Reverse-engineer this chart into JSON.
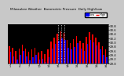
{
  "title": "Milwaukee Weather  Barometric Pressure  Daily High/Low",
  "background_color": "#c8c8c8",
  "plot_bg_color": "#000000",
  "high_color": "#ff0000",
  "low_color": "#0000ff",
  "legend_high": "High",
  "legend_low": "Low",
  "ylim_min": 29.0,
  "ylim_max": 30.85,
  "ytick_labels": [
    "29.0",
    "29.2",
    "29.4",
    "29.6",
    "29.8",
    "30.0",
    "30.2",
    "30.4",
    "30.6",
    "30.8"
  ],
  "ytick_vals": [
    29.0,
    29.2,
    29.4,
    29.6,
    29.8,
    30.0,
    30.2,
    30.4,
    30.6,
    30.8
  ],
  "dotted_lines": [
    15,
    16,
    17
  ],
  "xtick_labels": [
    "1",
    "",
    "",
    "4",
    "",
    "",
    "7",
    "",
    "",
    "10",
    "",
    "",
    "13",
    "",
    "",
    "16",
    "",
    "",
    "19",
    "",
    "",
    "22",
    "",
    "",
    "25",
    "",
    "",
    "28",
    "",
    "",
    "31"
  ],
  "highs": [
    29.82,
    29.76,
    29.6,
    29.72,
    29.88,
    29.7,
    29.55,
    29.65,
    29.75,
    29.52,
    29.6,
    29.45,
    29.65,
    30.05,
    30.22,
    30.42,
    30.52,
    30.45,
    30.1,
    29.98,
    30.15,
    30.32,
    30.08,
    29.95,
    30.28,
    30.48,
    30.38,
    30.22,
    30.02,
    29.82,
    29.65
  ],
  "lows": [
    29.55,
    29.32,
    29.18,
    29.42,
    29.6,
    29.35,
    29.15,
    29.28,
    29.42,
    29.18,
    29.22,
    29.08,
    29.3,
    29.72,
    29.92,
    30.08,
    30.18,
    30.12,
    29.75,
    29.65,
    29.78,
    29.95,
    29.7,
    29.58,
    29.92,
    30.12,
    30.0,
    29.85,
    29.65,
    29.42,
    29.28
  ],
  "n_bars": 31
}
